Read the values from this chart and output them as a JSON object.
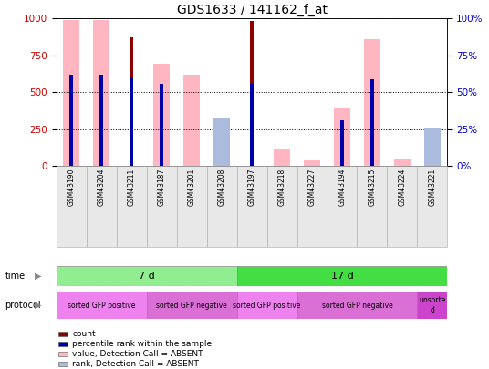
{
  "title": "GDS1633 / 141162_f_at",
  "samples": [
    "GSM43190",
    "GSM43204",
    "GSM43211",
    "GSM43187",
    "GSM43201",
    "GSM43208",
    "GSM43197",
    "GSM43218",
    "GSM43227",
    "GSM43194",
    "GSM43215",
    "GSM43224",
    "GSM43221"
  ],
  "count_values": [
    0,
    0,
    870,
    0,
    0,
    0,
    980,
    0,
    0,
    0,
    0,
    0,
    0
  ],
  "rank_values": [
    620,
    620,
    600,
    560,
    0,
    0,
    560,
    0,
    0,
    310,
    590,
    0,
    0
  ],
  "absent_value_bars": [
    990,
    990,
    0,
    690,
    620,
    0,
    0,
    120,
    40,
    390,
    860,
    50,
    260
  ],
  "absent_rank_bars": [
    0,
    0,
    0,
    0,
    0,
    330,
    0,
    0,
    0,
    0,
    0,
    0,
    260
  ],
  "ylim": [
    0,
    1000
  ],
  "yticks_left": [
    0,
    250,
    500,
    750,
    1000
  ],
  "yticks_right": [
    0,
    25,
    50,
    75,
    100
  ],
  "time_groups": [
    {
      "label": "7 d",
      "start": 0,
      "end": 6,
      "color": "#90EE90"
    },
    {
      "label": "17 d",
      "start": 6,
      "end": 13,
      "color": "#44DD44"
    }
  ],
  "protocol_groups": [
    {
      "label": "sorted GFP positive",
      "start": 0,
      "end": 3,
      "color": "#EE82EE"
    },
    {
      "label": "sorted GFP negative",
      "start": 3,
      "end": 6,
      "color": "#DA70D6"
    },
    {
      "label": "sorted GFP positive",
      "start": 6,
      "end": 8,
      "color": "#EE82EE"
    },
    {
      "label": "sorted GFP negative",
      "start": 8,
      "end": 12,
      "color": "#DA70D6"
    },
    {
      "label": "unsorte\nd",
      "start": 12,
      "end": 13,
      "color": "#CC44CC"
    }
  ],
  "color_count": "#8B0000",
  "color_rank": "#0000AA",
  "color_absent_value": "#FFB6C1",
  "color_absent_rank": "#AABBDD",
  "background_color": "#ffffff",
  "title_fontsize": 10,
  "axis_color_left": "#CC0000",
  "axis_color_right": "#0000CC"
}
